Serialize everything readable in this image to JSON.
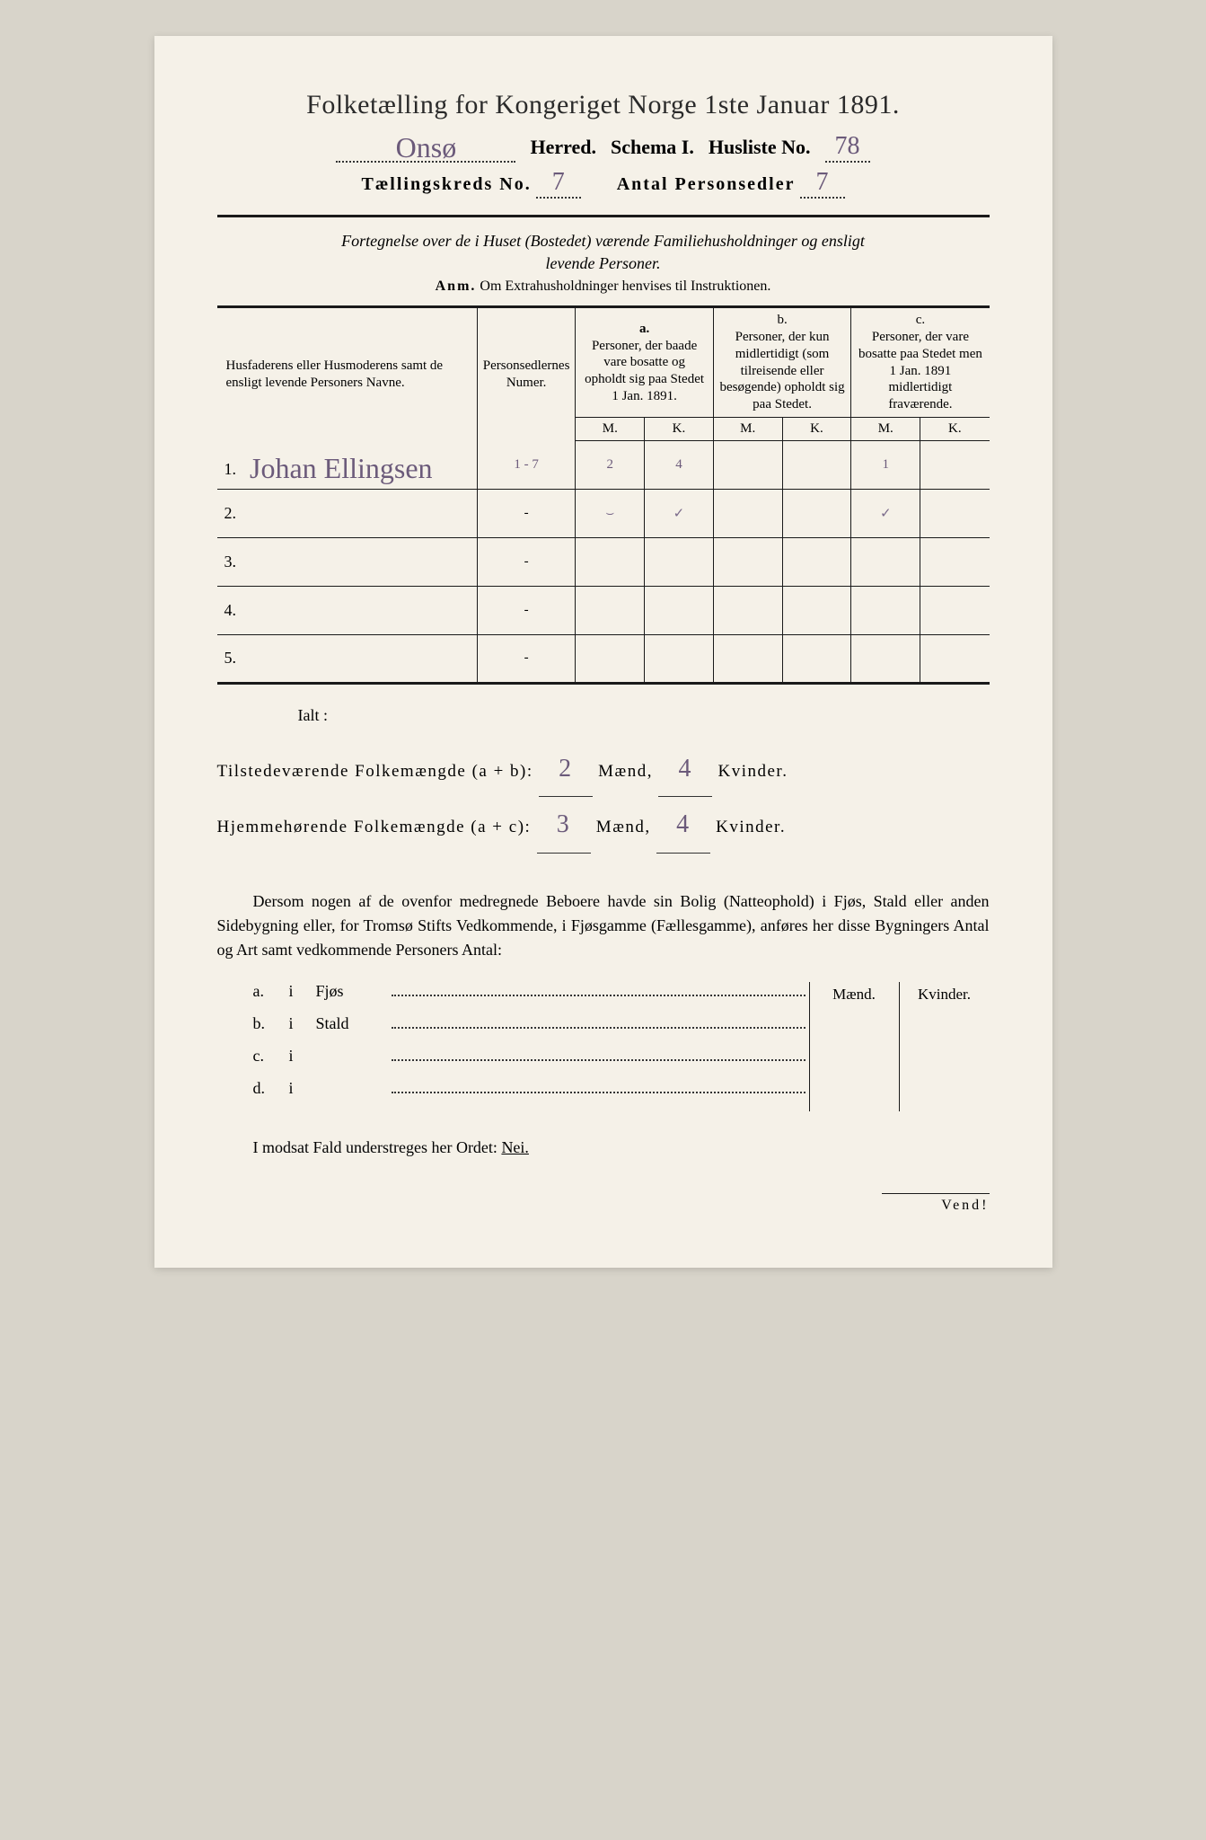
{
  "title": "Folketælling for Kongeriget Norge 1ste Januar 1891.",
  "header": {
    "herred_value": "Onsø",
    "herred_label": "Herred.",
    "schema_label": "Schema I.",
    "husliste_label": "Husliste No.",
    "husliste_value": "78",
    "kreds_label": "Tællingskreds No.",
    "kreds_value": "7",
    "antal_label": "Antal Personsedler",
    "antal_value": "7"
  },
  "subtitle_line1": "Fortegnelse over de i Huset (Bostedet) værende Familiehusholdninger og ensligt",
  "subtitle_line2": "levende Personer.",
  "anm_label": "Anm.",
  "anm_text": "Om Extrahusholdninger henvises til Instruktionen.",
  "table": {
    "col_name": "Husfaderens eller Husmoderens samt de ensligt levende Personers Navne.",
    "col_num": "Personsedlernes Numer.",
    "col_a_label": "a.",
    "col_a": "Personer, der baade vare bosatte og opholdt sig paa Stedet 1 Jan. 1891.",
    "col_b_label": "b.",
    "col_b": "Personer, der kun midlertidigt (som tilreisende eller besøgende) opholdt sig paa Stedet.",
    "col_c_label": "c.",
    "col_c": "Personer, der vare bosatte paa Stedet men 1 Jan. 1891 midlertidigt fraværende.",
    "m": "M.",
    "k": "K.",
    "rows": [
      {
        "n": "1.",
        "name": "Johan Ellingsen",
        "num": "1 - 7",
        "a_m": "2",
        "a_k": "4",
        "b_m": "",
        "b_k": "",
        "c_m": "1",
        "c_k": ""
      },
      {
        "n": "2.",
        "name": "",
        "num": "-",
        "a_m": "⌣",
        "a_k": "✓",
        "b_m": "",
        "b_k": "",
        "c_m": "✓",
        "c_k": ""
      },
      {
        "n": "3.",
        "name": "",
        "num": "-",
        "a_m": "",
        "a_k": "",
        "b_m": "",
        "b_k": "",
        "c_m": "",
        "c_k": ""
      },
      {
        "n": "4.",
        "name": "",
        "num": "-",
        "a_m": "",
        "a_k": "",
        "b_m": "",
        "b_k": "",
        "c_m": "",
        "c_k": ""
      },
      {
        "n": "5.",
        "name": "",
        "num": "-",
        "a_m": "",
        "a_k": "",
        "b_m": "",
        "b_k": "",
        "c_m": "",
        "c_k": ""
      }
    ]
  },
  "ialt": "Ialt :",
  "totals": {
    "line1_label": "Tilstedeværende Folkemængde (a + b):",
    "line1_m": "2",
    "line1_k": "4",
    "line2_label": "Hjemmehørende Folkemængde (a + c):",
    "line2_m": "3",
    "line2_k": "4",
    "maend": "Mænd,",
    "kvinder": "Kvinder."
  },
  "para": "Dersom nogen af de ovenfor medregnede Beboere havde sin Bolig (Natteophold) i Fjøs, Stald eller anden Sidebygning eller, for Tromsø Stifts Vedkommende, i Fjøsgamme (Fællesgamme), anføres her disse Bygningers Antal og Art samt vedkommende Personers Antal:",
  "bldg": {
    "maend": "Mænd.",
    "kvinder": "Kvinder.",
    "rows": [
      {
        "lbl": "a.",
        "i": "i",
        "name": "Fjøs"
      },
      {
        "lbl": "b.",
        "i": "i",
        "name": "Stald"
      },
      {
        "lbl": "c.",
        "i": "i",
        "name": ""
      },
      {
        "lbl": "d.",
        "i": "i",
        "name": ""
      }
    ]
  },
  "footer": "I modsat Fald understreges her Ordet:",
  "nei": "Nei.",
  "vend": "Vend!",
  "colors": {
    "page_bg": "#f5f1e8",
    "ink": "#1a1a1a",
    "handwriting": "#6b5a7a"
  }
}
